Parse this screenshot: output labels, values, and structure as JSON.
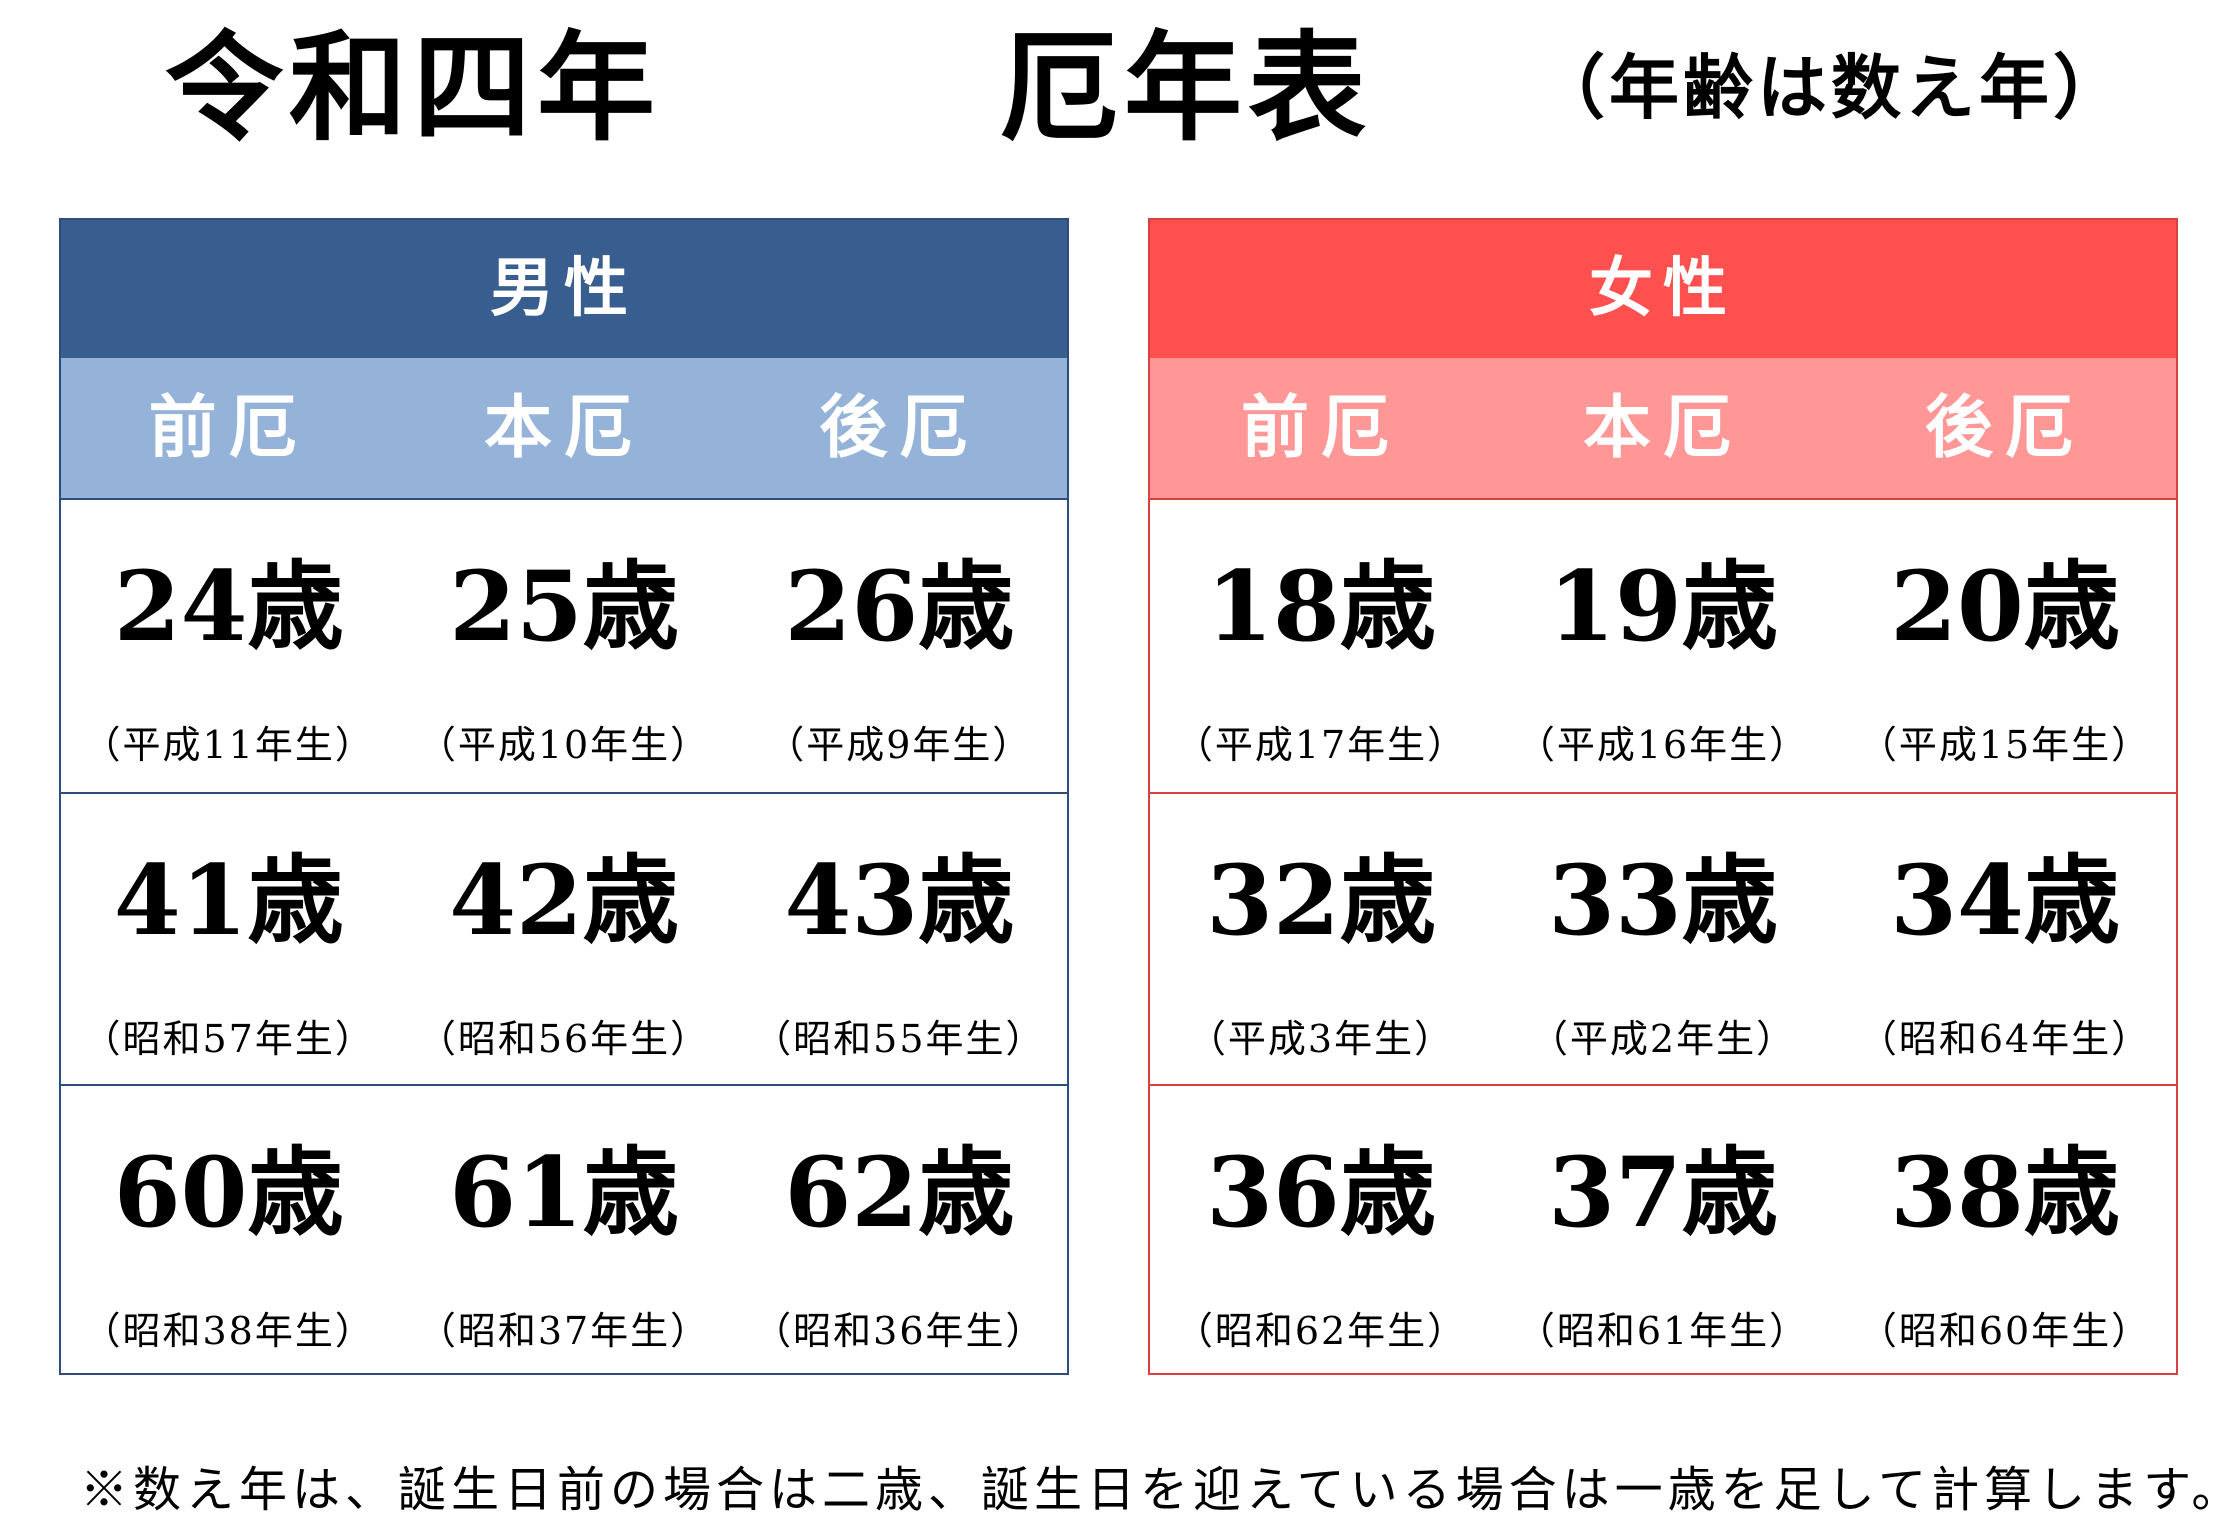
{
  "title": {
    "era": "令和四年",
    "main": "厄年表",
    "note": "（年齢は数え年）"
  },
  "male": {
    "header": "男性",
    "columns": [
      "前厄",
      "本厄",
      "後厄"
    ],
    "rows": [
      [
        {
          "age": "24歳",
          "birth": "（平成11年生）"
        },
        {
          "age": "25歳",
          "birth": "（平成10年生）"
        },
        {
          "age": "26歳",
          "birth": "（平成9年生）"
        }
      ],
      [
        {
          "age": "41歳",
          "birth": "（昭和57年生）"
        },
        {
          "age": "42歳",
          "birth": "（昭和56年生）"
        },
        {
          "age": "43歳",
          "birth": "（昭和55年生）"
        }
      ],
      [
        {
          "age": "60歳",
          "birth": "（昭和38年生）"
        },
        {
          "age": "61歳",
          "birth": "（昭和37年生）"
        },
        {
          "age": "62歳",
          "birth": "（昭和36年生）"
        }
      ]
    ]
  },
  "female": {
    "header": "女性",
    "columns": [
      "前厄",
      "本厄",
      "後厄"
    ],
    "rows": [
      [
        {
          "age": "18歳",
          "birth": "（平成17年生）"
        },
        {
          "age": "19歳",
          "birth": "（平成16年生）"
        },
        {
          "age": "20歳",
          "birth": "（平成15年生）"
        }
      ],
      [
        {
          "age": "32歳",
          "birth": "（平成3年生）"
        },
        {
          "age": "33歳",
          "birth": "（平成2年生）"
        },
        {
          "age": "34歳",
          "birth": "（昭和64年生）"
        }
      ],
      [
        {
          "age": "36歳",
          "birth": "（昭和62年生）"
        },
        {
          "age": "37歳",
          "birth": "（昭和61年生）"
        },
        {
          "age": "38歳",
          "birth": "（昭和60年生）"
        }
      ]
    ]
  },
  "footnote": "※数え年は、誕生日前の場合は二歳、誕生日を迎えている場合は一歳を足して計算します。",
  "colors": {
    "male_header": "#375e8f",
    "male_subheader": "#95b2d9",
    "female_header": "#ff5050",
    "female_subheader": "#ff9797"
  }
}
